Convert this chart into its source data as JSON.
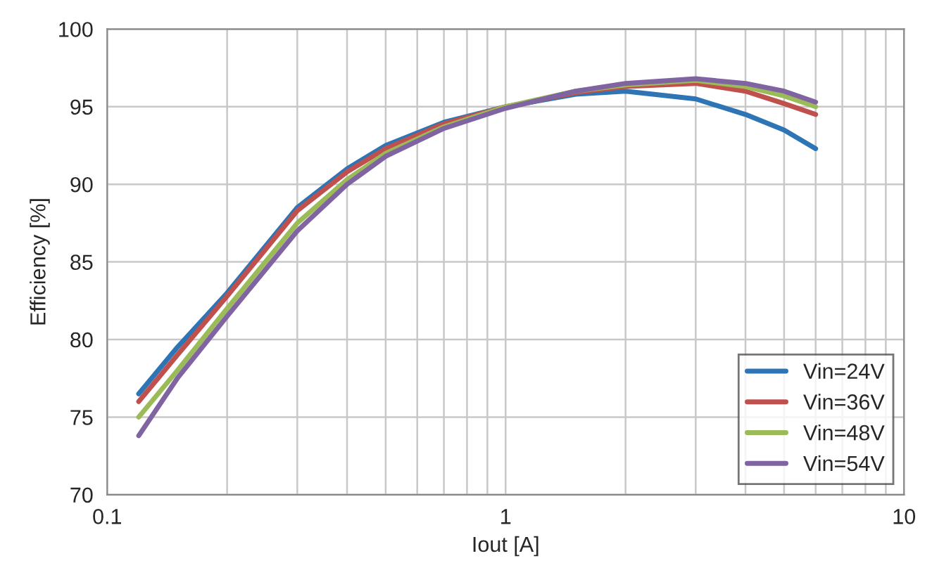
{
  "chart_data": {
    "type": "line",
    "xlabel": "Iout [A]",
    "ylabel": "Efficiency [%]",
    "x": [
      0.12,
      0.15,
      0.2,
      0.3,
      0.4,
      0.5,
      0.7,
      1,
      1.5,
      2,
      3,
      4,
      5,
      6
    ],
    "series": [
      {
        "name": "Vin=24V",
        "color": "#2e75b6",
        "values": [
          76.5,
          79.5,
          83,
          88.5,
          91,
          92.5,
          94,
          95,
          95.8,
          96,
          95.5,
          94.5,
          93.5,
          92.3
        ]
      },
      {
        "name": "Vin=36V",
        "color": "#c0504d",
        "values": [
          76,
          79,
          82.8,
          88.3,
          90.8,
          92.3,
          93.9,
          95,
          95.9,
          96.3,
          96.5,
          96,
          95.2,
          94.5
        ]
      },
      {
        "name": "Vin=48V",
        "color": "#9bbb59",
        "values": [
          75,
          78,
          82,
          87.5,
          90.3,
          92,
          93.7,
          95,
          96,
          96.4,
          96.7,
          96.3,
          95.7,
          95
        ]
      },
      {
        "name": "Vin=54V",
        "color": "#8064a2",
        "values": [
          73.8,
          77.5,
          81.5,
          87,
          90,
          91.8,
          93.6,
          94.9,
          96,
          96.5,
          96.8,
          96.5,
          96,
          95.3
        ]
      }
    ],
    "log": "x",
    "xlim": [
      0.1,
      10
    ],
    "xticks": [
      0.1,
      1,
      10
    ],
    "ylim": [
      70,
      100
    ],
    "yticks": [
      70,
      75,
      80,
      85,
      90,
      95,
      100
    ],
    "grid": true,
    "legend": "bottom right",
    "line_style": "solid",
    "marker": "none"
  }
}
